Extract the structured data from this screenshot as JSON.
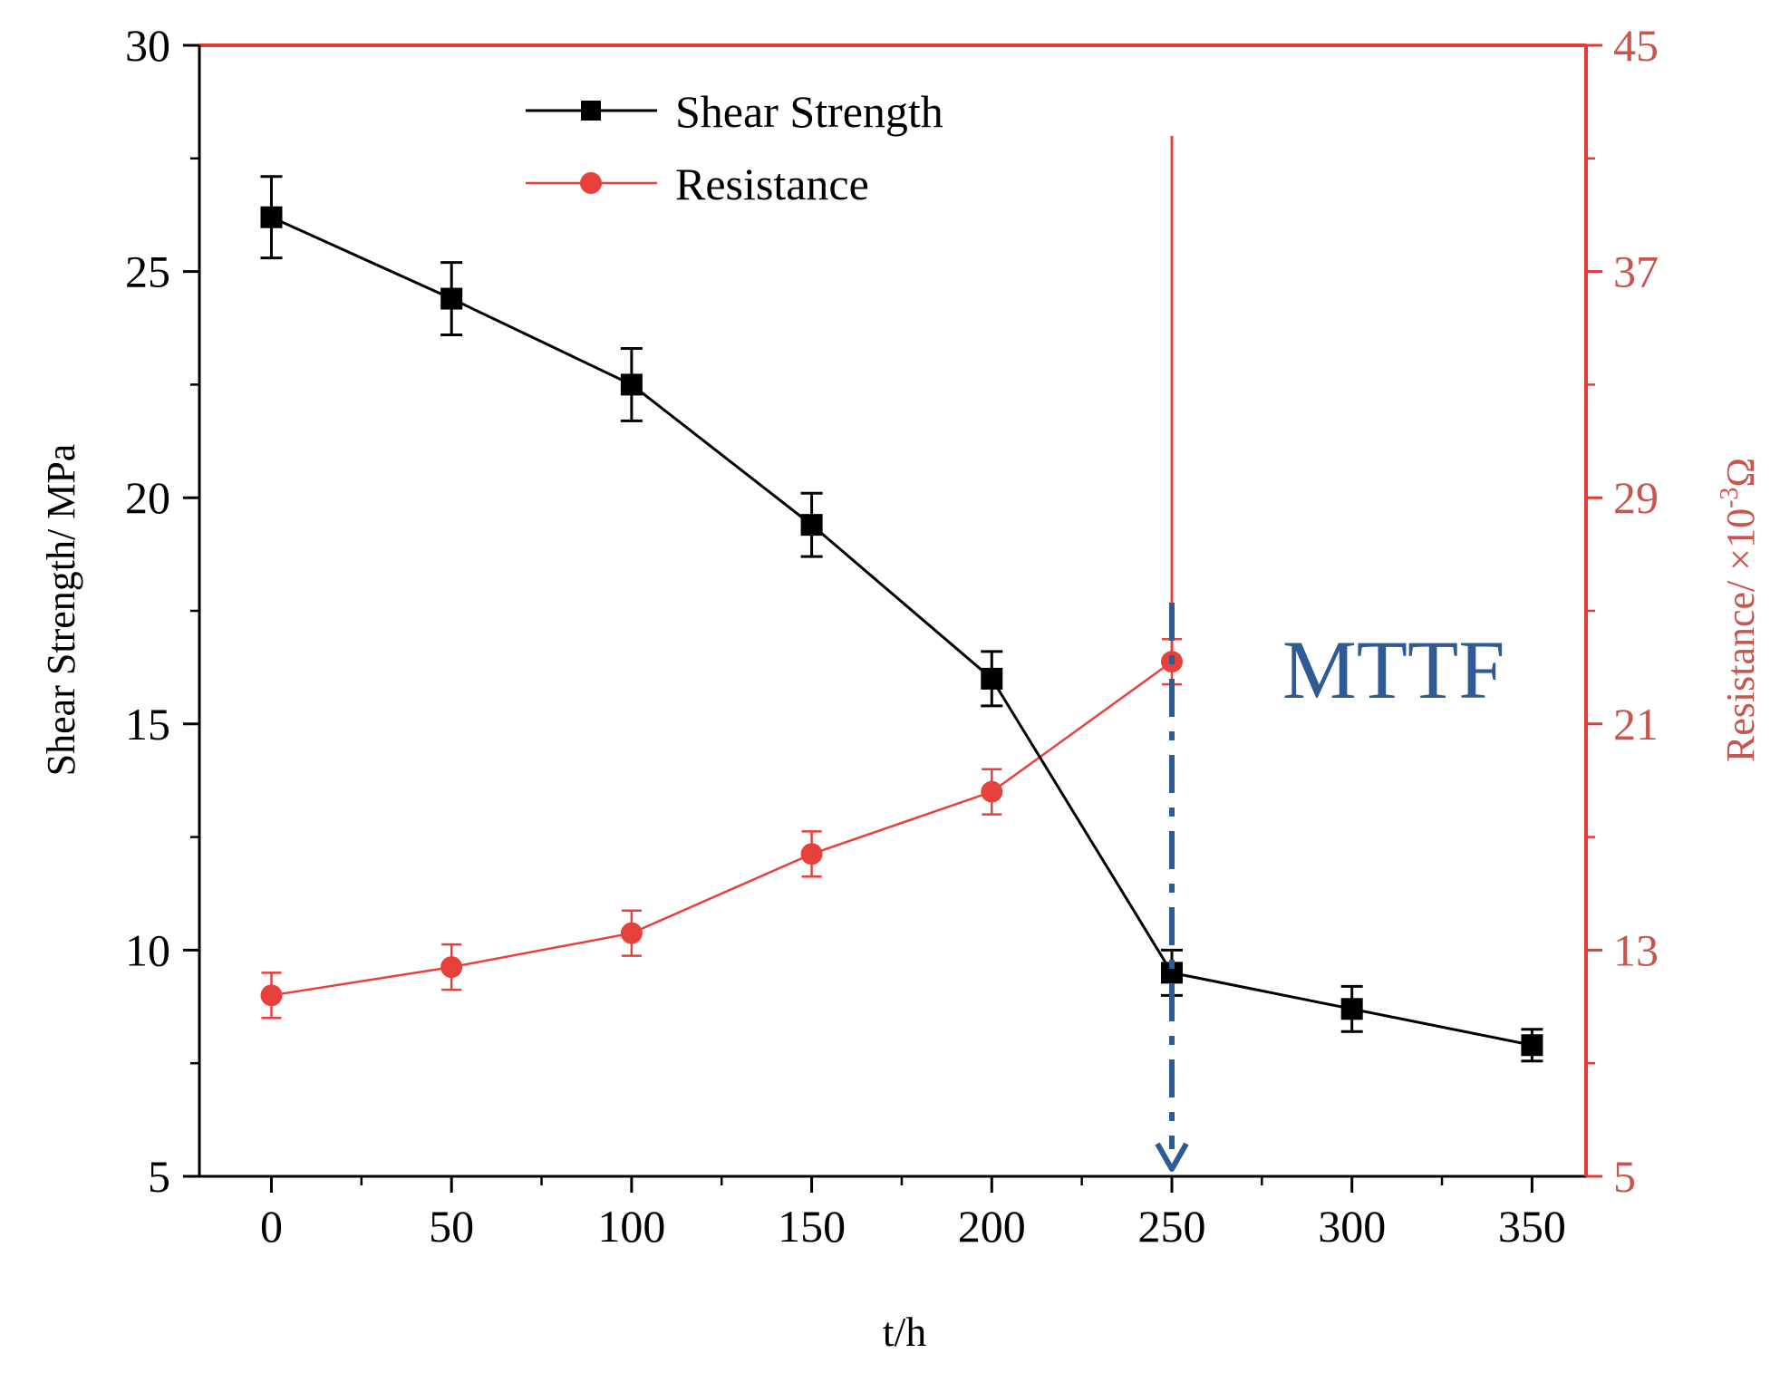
{
  "chart_data": {
    "type": "line",
    "title": "",
    "xlabel": "t/h",
    "ylabel": "Shear Strength/ MPa",
    "y2label_base": "Resistance/ ×10",
    "y2label_exp": "-3",
    "y2label_unit": "Ω",
    "xlim": [
      -20,
      365
    ],
    "xticks": [
      "0",
      "50",
      "100",
      "150",
      "200",
      "250",
      "300",
      "350"
    ],
    "ylim": [
      5,
      30
    ],
    "yticks": [
      "5",
      "10",
      "15",
      "20",
      "25",
      "30"
    ],
    "y2lim": [
      5,
      45
    ],
    "y2ticks": [
      "5",
      "13",
      "21",
      "29",
      "37",
      "45"
    ],
    "series": [
      {
        "name": "Shear Strength",
        "axis": "left",
        "marker": "square",
        "color": "#000000",
        "x": [
          0,
          50,
          100,
          150,
          200,
          250,
          300,
          350
        ],
        "values": [
          26.2,
          24.4,
          22.5,
          19.4,
          16.0,
          9.5,
          8.7,
          7.9
        ],
        "errors": [
          0.9,
          0.8,
          0.8,
          0.7,
          0.6,
          0.5,
          0.5,
          0.35
        ]
      },
      {
        "name": "Resistance",
        "axis": "right",
        "marker": "circle",
        "color": "#e8403c",
        "x": [
          0,
          50,
          100,
          150,
          200,
          250
        ],
        "values": [
          11.4,
          12.4,
          13.6,
          16.4,
          18.6,
          23.2
        ],
        "errors": [
          0.8,
          0.8,
          0.8,
          0.8,
          0.8,
          0.8
        ]
      }
    ],
    "resistance_jump": {
      "x": 250,
      "to_value": 41.8
    },
    "annotation": {
      "label": "MTTF",
      "x": 250,
      "color": "#2e5b94"
    }
  }
}
